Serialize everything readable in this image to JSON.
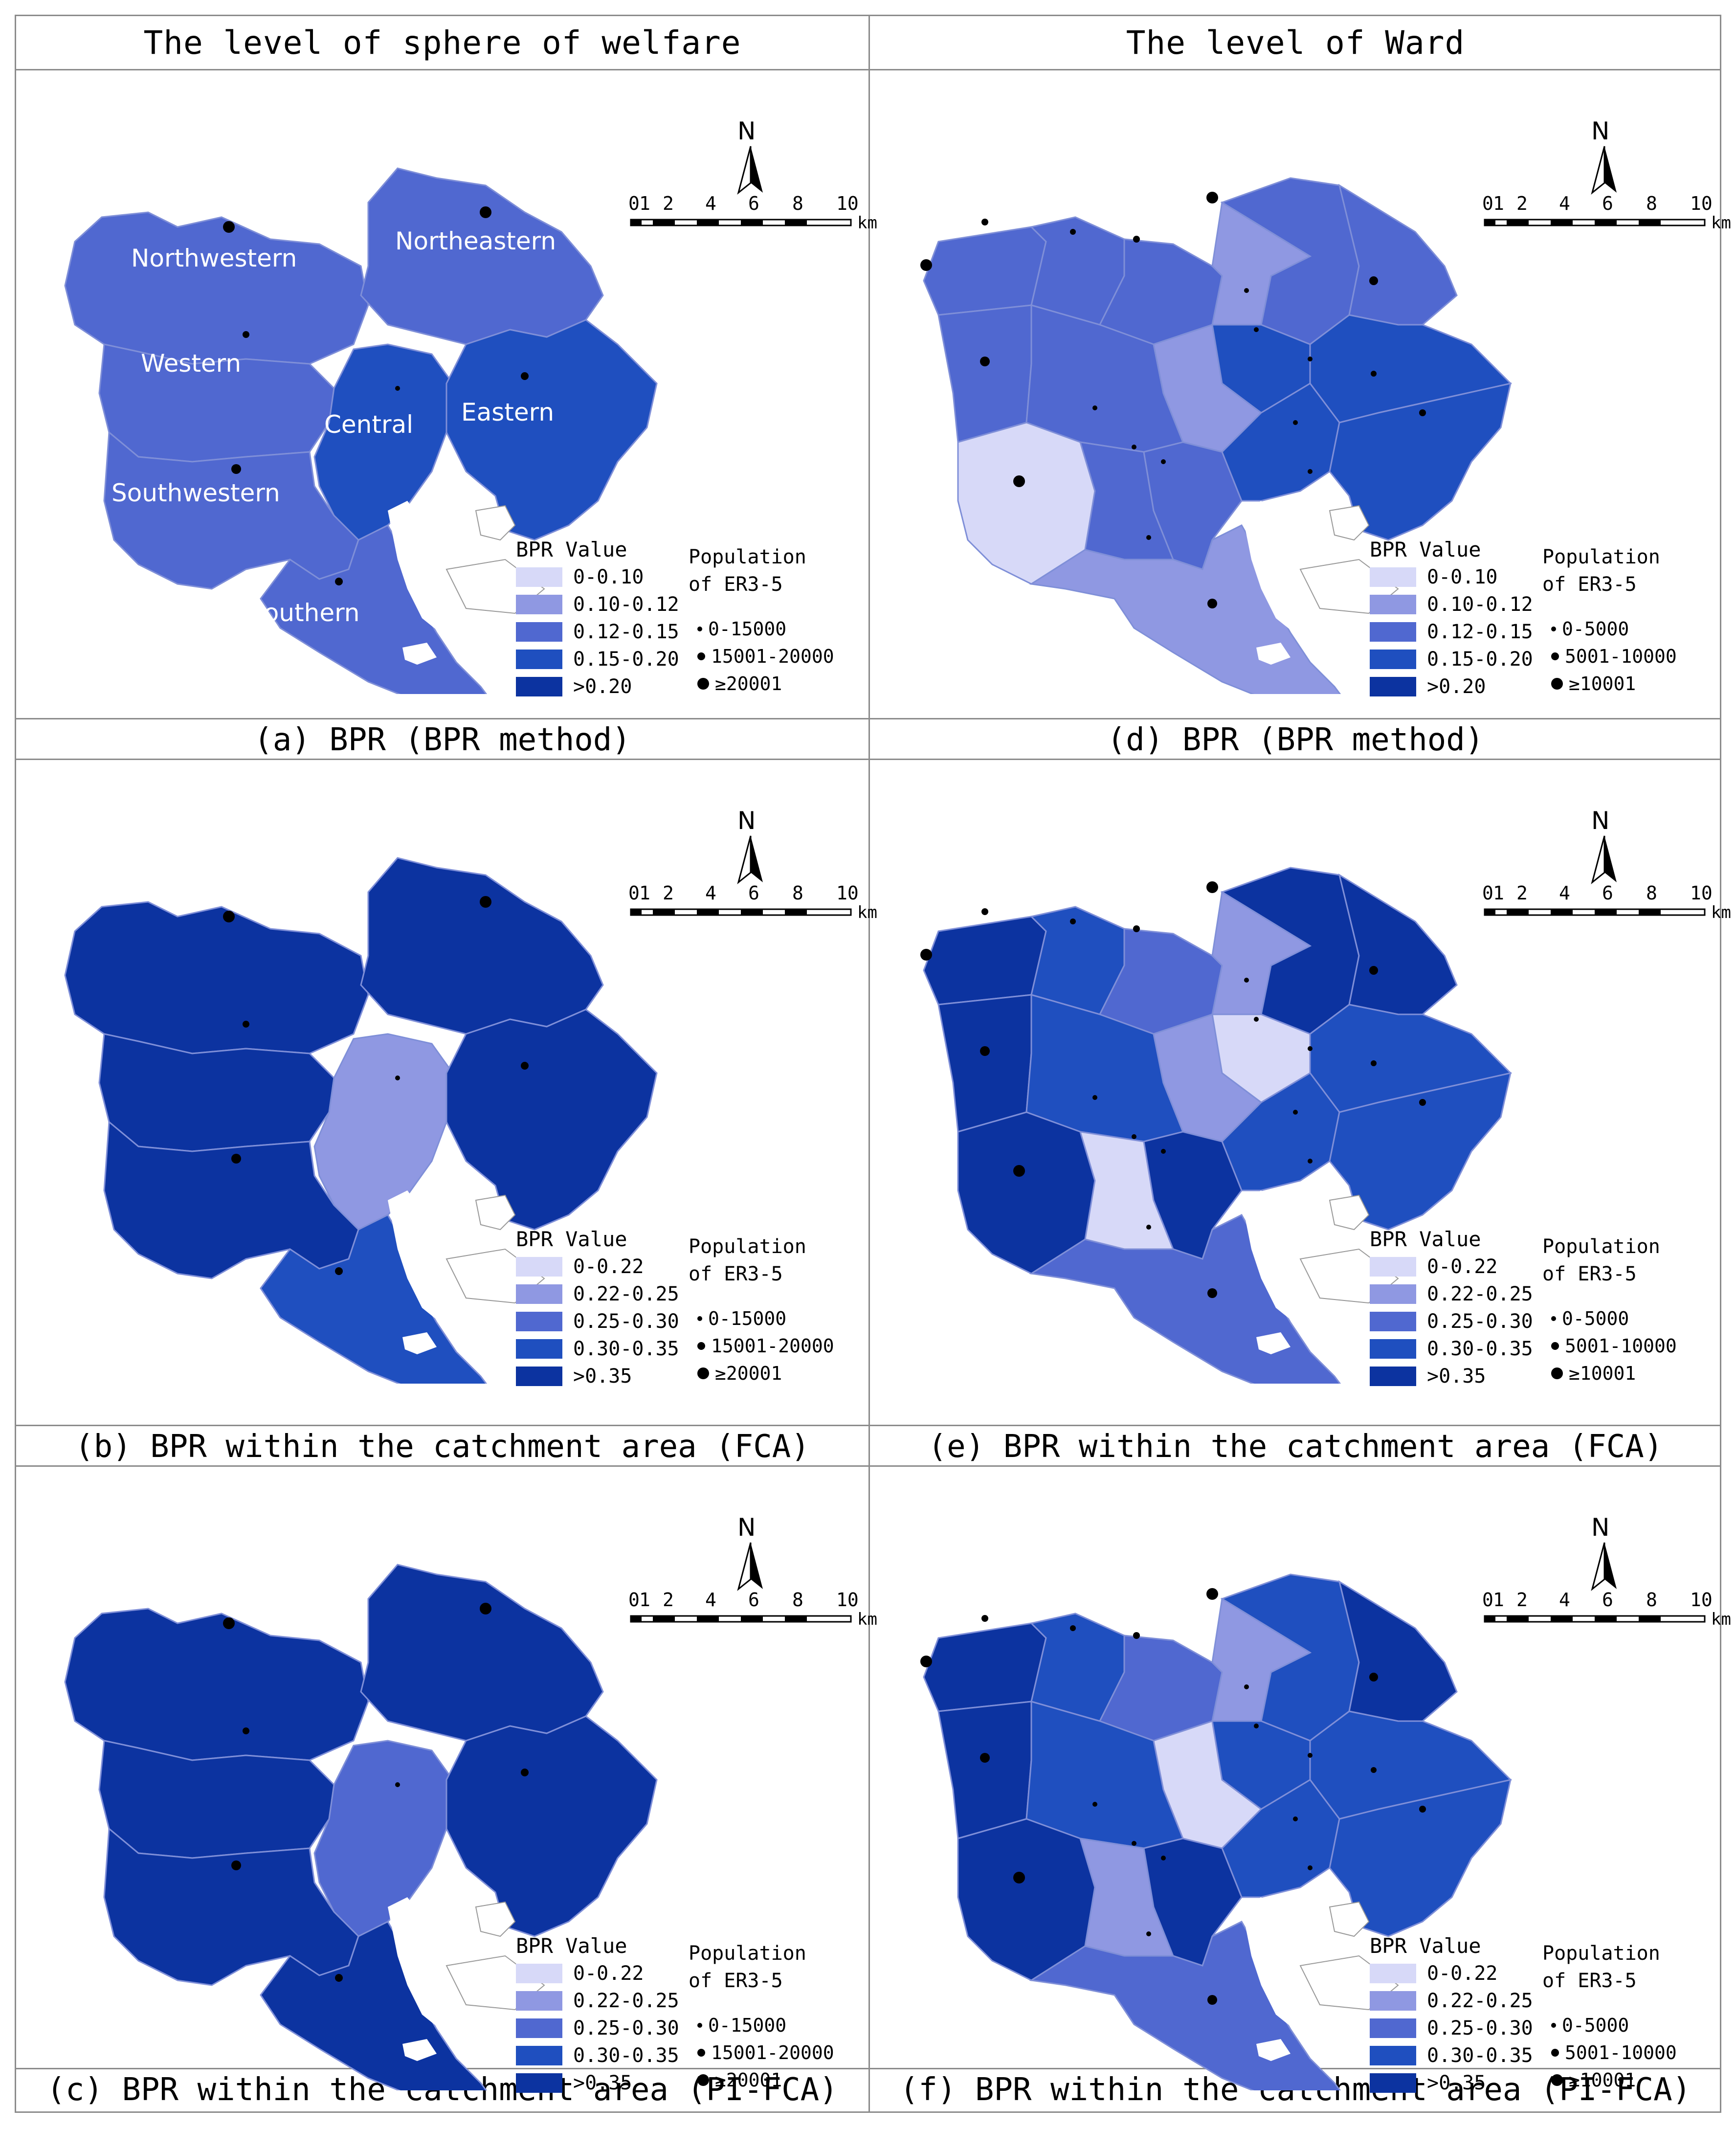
{
  "headers": {
    "left": "The level of sphere of welfare",
    "right": "The level of Ward"
  },
  "captions": {
    "a": "(a) BPR (BPR method)",
    "b": "(b) BPR within the catchment area (FCA)",
    "c": "(c) BPR within the catchment area (PI-FCA)",
    "d": "(d) BPR (BPR method)",
    "e": "(e) BPR within the catchment area (FCA)",
    "f": "(f) BPR within the catchment area (PI-FCA)"
  },
  "colors": {
    "class1": "#d7d9f8",
    "class2": "#8f98e2",
    "class3": "#5068d0",
    "class4": "#1f4fbf",
    "class5": "#0c33a0",
    "boundary": "#7f8fd8"
  },
  "compass": {
    "north": "N"
  },
  "scalebar": {
    "ticks": [
      "0",
      "1",
      "2",
      "4",
      "6",
      "8",
      "10"
    ],
    "unit": "km"
  },
  "region_labels": [
    "Northwestern",
    "Northeastern",
    "Western",
    "Central",
    "Eastern",
    "Southwestern",
    "Southern"
  ],
  "legend": {
    "bpr_title": "BPR Value",
    "classes_a": [
      "0-0.10",
      "0.10-0.12",
      "0.12-0.15",
      "0.15-0.20",
      ">0.20"
    ],
    "classes_bc": [
      "0-0.22",
      "0.22-0.25",
      "0.25-0.30",
      "0.30-0.35",
      ">0.35"
    ],
    "pop_title_1": "Population",
    "pop_title_2": "of ER3-5",
    "pop_sphere": [
      "0-15000",
      "15001-20000",
      "≥20001"
    ],
    "pop_ward": [
      "0-5000",
      "5001-10000",
      "≥10001"
    ]
  },
  "maps": {
    "a": {
      "regions": {
        "northwestern": 3,
        "northeastern": 3,
        "western": 3,
        "central": 4,
        "eastern": 4,
        "southwestern": 3,
        "southern": 3
      }
    },
    "b": {
      "regions": {
        "northwestern": 5,
        "northeastern": 5,
        "western": 5,
        "central": 2,
        "eastern": 5,
        "southwestern": 5,
        "southern": 4
      }
    },
    "c": {
      "regions": {
        "northwestern": 5,
        "northeastern": 5,
        "western": 5,
        "central": 3,
        "eastern": 5,
        "southwestern": 5,
        "southern": 5
      }
    }
  }
}
